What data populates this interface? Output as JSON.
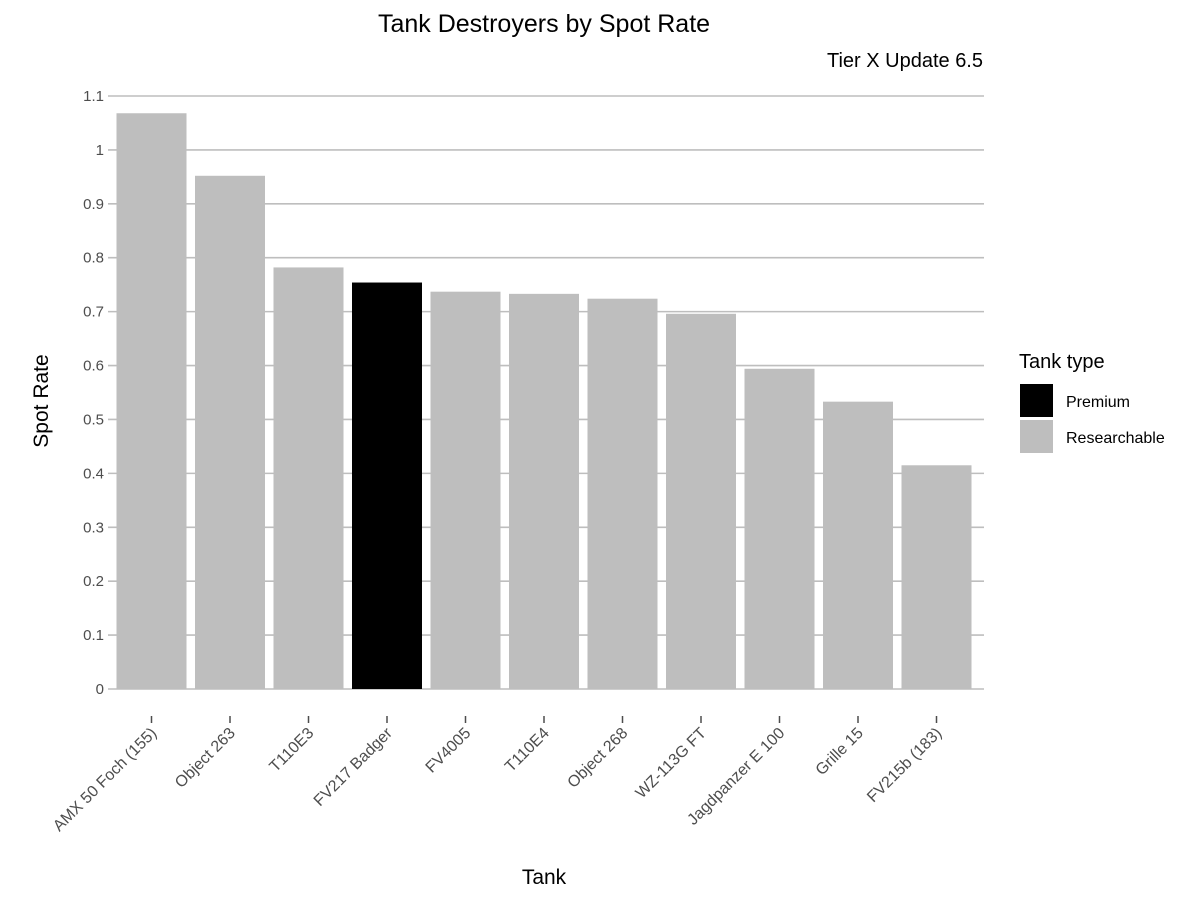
{
  "chart_data": {
    "type": "bar",
    "title": "Tank Destroyers by Spot Rate",
    "subtitle": "Tier X Update 6.5",
    "xlabel": "Tank",
    "ylabel": "Spot Rate",
    "ylim": [
      0,
      1.1
    ],
    "y_ticks": [
      0,
      0.1,
      0.2,
      0.3,
      0.4,
      0.5,
      0.6,
      0.7,
      0.8,
      0.9,
      1,
      1.1
    ],
    "y_tick_labels": [
      "0",
      "0.1",
      "0.2",
      "0.3",
      "0.4",
      "0.5",
      "0.6",
      "0.7",
      "0.8",
      "0.9",
      "1",
      "1.1"
    ],
    "grid": "horizontal",
    "categories": [
      "AMX 50 Foch (155)",
      "Object 263",
      "T110E3",
      "FV217 Badger",
      "FV4005",
      "T110E4",
      "Object 268",
      "WZ-113G FT",
      "Jagdpanzer E 100",
      "Grille 15",
      "FV215b (183)"
    ],
    "values": [
      1.068,
      0.952,
      0.782,
      0.754,
      0.737,
      0.733,
      0.724,
      0.696,
      0.594,
      0.533,
      0.415
    ],
    "groups": [
      "Researchable",
      "Researchable",
      "Researchable",
      "Premium",
      "Researchable",
      "Researchable",
      "Researchable",
      "Researchable",
      "Researchable",
      "Researchable",
      "Researchable"
    ],
    "legend": {
      "title": "Tank type",
      "placement": "right",
      "entries": [
        {
          "label": "Premium",
          "color": "#000000"
        },
        {
          "label": "Researchable",
          "color": "#bebebe"
        }
      ]
    },
    "colors": {
      "Premium": "#000000",
      "Researchable": "#bebebe",
      "grid": "#bebebe",
      "tick": "#4d4d4d"
    }
  }
}
